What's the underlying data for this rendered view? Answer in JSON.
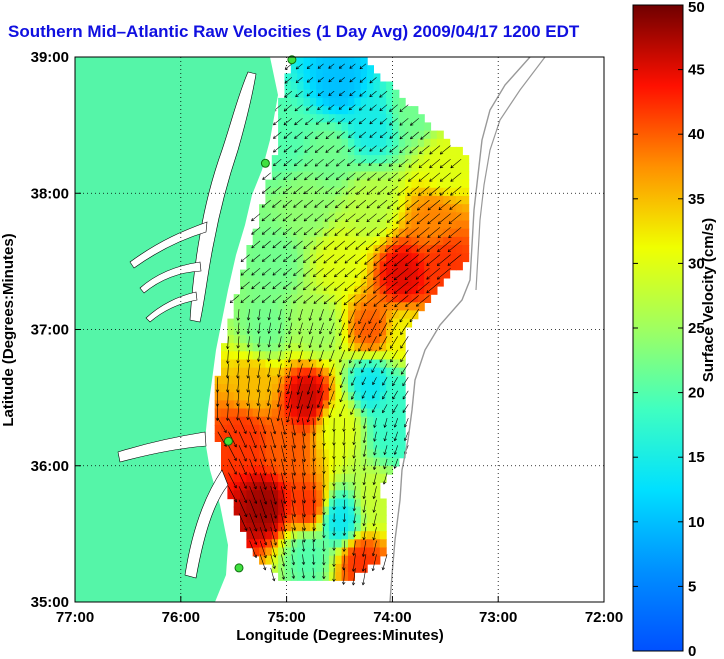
{
  "chart_data": {
    "type": "heatmap",
    "title": "Southern Mid–Atlantic Raw Velocities (1 Day Avg) 2009/04/17 1200 EDT",
    "xlabel": "Longitude (Degrees:Minutes)",
    "ylabel": "Latitude (Degrees:Minutes)",
    "colorbar_label": "Surface Velocity (cm/s)",
    "x_ticks": [
      "77:00",
      "76:00",
      "75:00",
      "74:00",
      "73:00",
      "72:00"
    ],
    "y_ticks": [
      "39:00",
      "38:00",
      "37:00",
      "36:00",
      "35:00"
    ],
    "colorbar_ticks": [
      "0",
      "5",
      "10",
      "15",
      "20",
      "25",
      "30",
      "35",
      "40",
      "45",
      "50"
    ],
    "xlim": [
      -77,
      -72
    ],
    "ylim": [
      35,
      39
    ],
    "clim": [
      0,
      50
    ],
    "grid": true,
    "colormap": "jet",
    "land_color": "#55f5a8",
    "hfr_sites": [
      {
        "lon": -74.95,
        "lat": 38.98
      },
      {
        "lon": -75.2,
        "lat": 38.22
      },
      {
        "lon": -75.55,
        "lat": 36.18
      },
      {
        "lon": -75.45,
        "lat": 35.25
      }
    ],
    "velocity_regions": [
      {
        "lon": -74.5,
        "lat": 38.8,
        "speed": 10
      },
      {
        "lon": -75.0,
        "lat": 38.4,
        "speed": 20
      },
      {
        "lon": -74.6,
        "lat": 38.3,
        "speed": 22
      },
      {
        "lon": -74.2,
        "lat": 38.5,
        "speed": 15
      },
      {
        "lon": -73.8,
        "lat": 38.6,
        "speed": 22
      },
      {
        "lon": -73.5,
        "lat": 38.2,
        "speed": 30
      },
      {
        "lon": -74.8,
        "lat": 37.9,
        "speed": 24
      },
      {
        "lon": -74.2,
        "lat": 37.9,
        "speed": 27
      },
      {
        "lon": -73.6,
        "lat": 37.8,
        "speed": 38
      },
      {
        "lon": -75.1,
        "lat": 37.5,
        "speed": 22
      },
      {
        "lon": -74.5,
        "lat": 37.5,
        "speed": 30
      },
      {
        "lon": -73.9,
        "lat": 37.4,
        "speed": 45
      },
      {
        "lon": -73.5,
        "lat": 37.5,
        "speed": 42
      },
      {
        "lon": -75.2,
        "lat": 37.0,
        "speed": 22
      },
      {
        "lon": -74.7,
        "lat": 37.0,
        "speed": 25
      },
      {
        "lon": -74.2,
        "lat": 37.0,
        "speed": 40
      },
      {
        "lon": -73.9,
        "lat": 36.95,
        "speed": 32
      },
      {
        "lon": -75.3,
        "lat": 36.6,
        "speed": 35
      },
      {
        "lon": -74.8,
        "lat": 36.5,
        "speed": 46
      },
      {
        "lon": -74.2,
        "lat": 36.6,
        "speed": 14
      },
      {
        "lon": -73.95,
        "lat": 36.5,
        "speed": 18
      },
      {
        "lon": -75.4,
        "lat": 36.2,
        "speed": 42
      },
      {
        "lon": -75.0,
        "lat": 36.1,
        "speed": 40
      },
      {
        "lon": -74.5,
        "lat": 36.3,
        "speed": 30
      },
      {
        "lon": -74.0,
        "lat": 36.25,
        "speed": 18
      },
      {
        "lon": -75.2,
        "lat": 35.7,
        "speed": 48
      },
      {
        "lon": -74.8,
        "lat": 35.7,
        "speed": 42
      },
      {
        "lon": -74.5,
        "lat": 35.6,
        "speed": 14
      },
      {
        "lon": -74.15,
        "lat": 35.75,
        "speed": 28
      },
      {
        "lon": -74.3,
        "lat": 35.3,
        "speed": 42
      },
      {
        "lon": -74.8,
        "lat": 35.35,
        "speed": 20
      }
    ]
  }
}
